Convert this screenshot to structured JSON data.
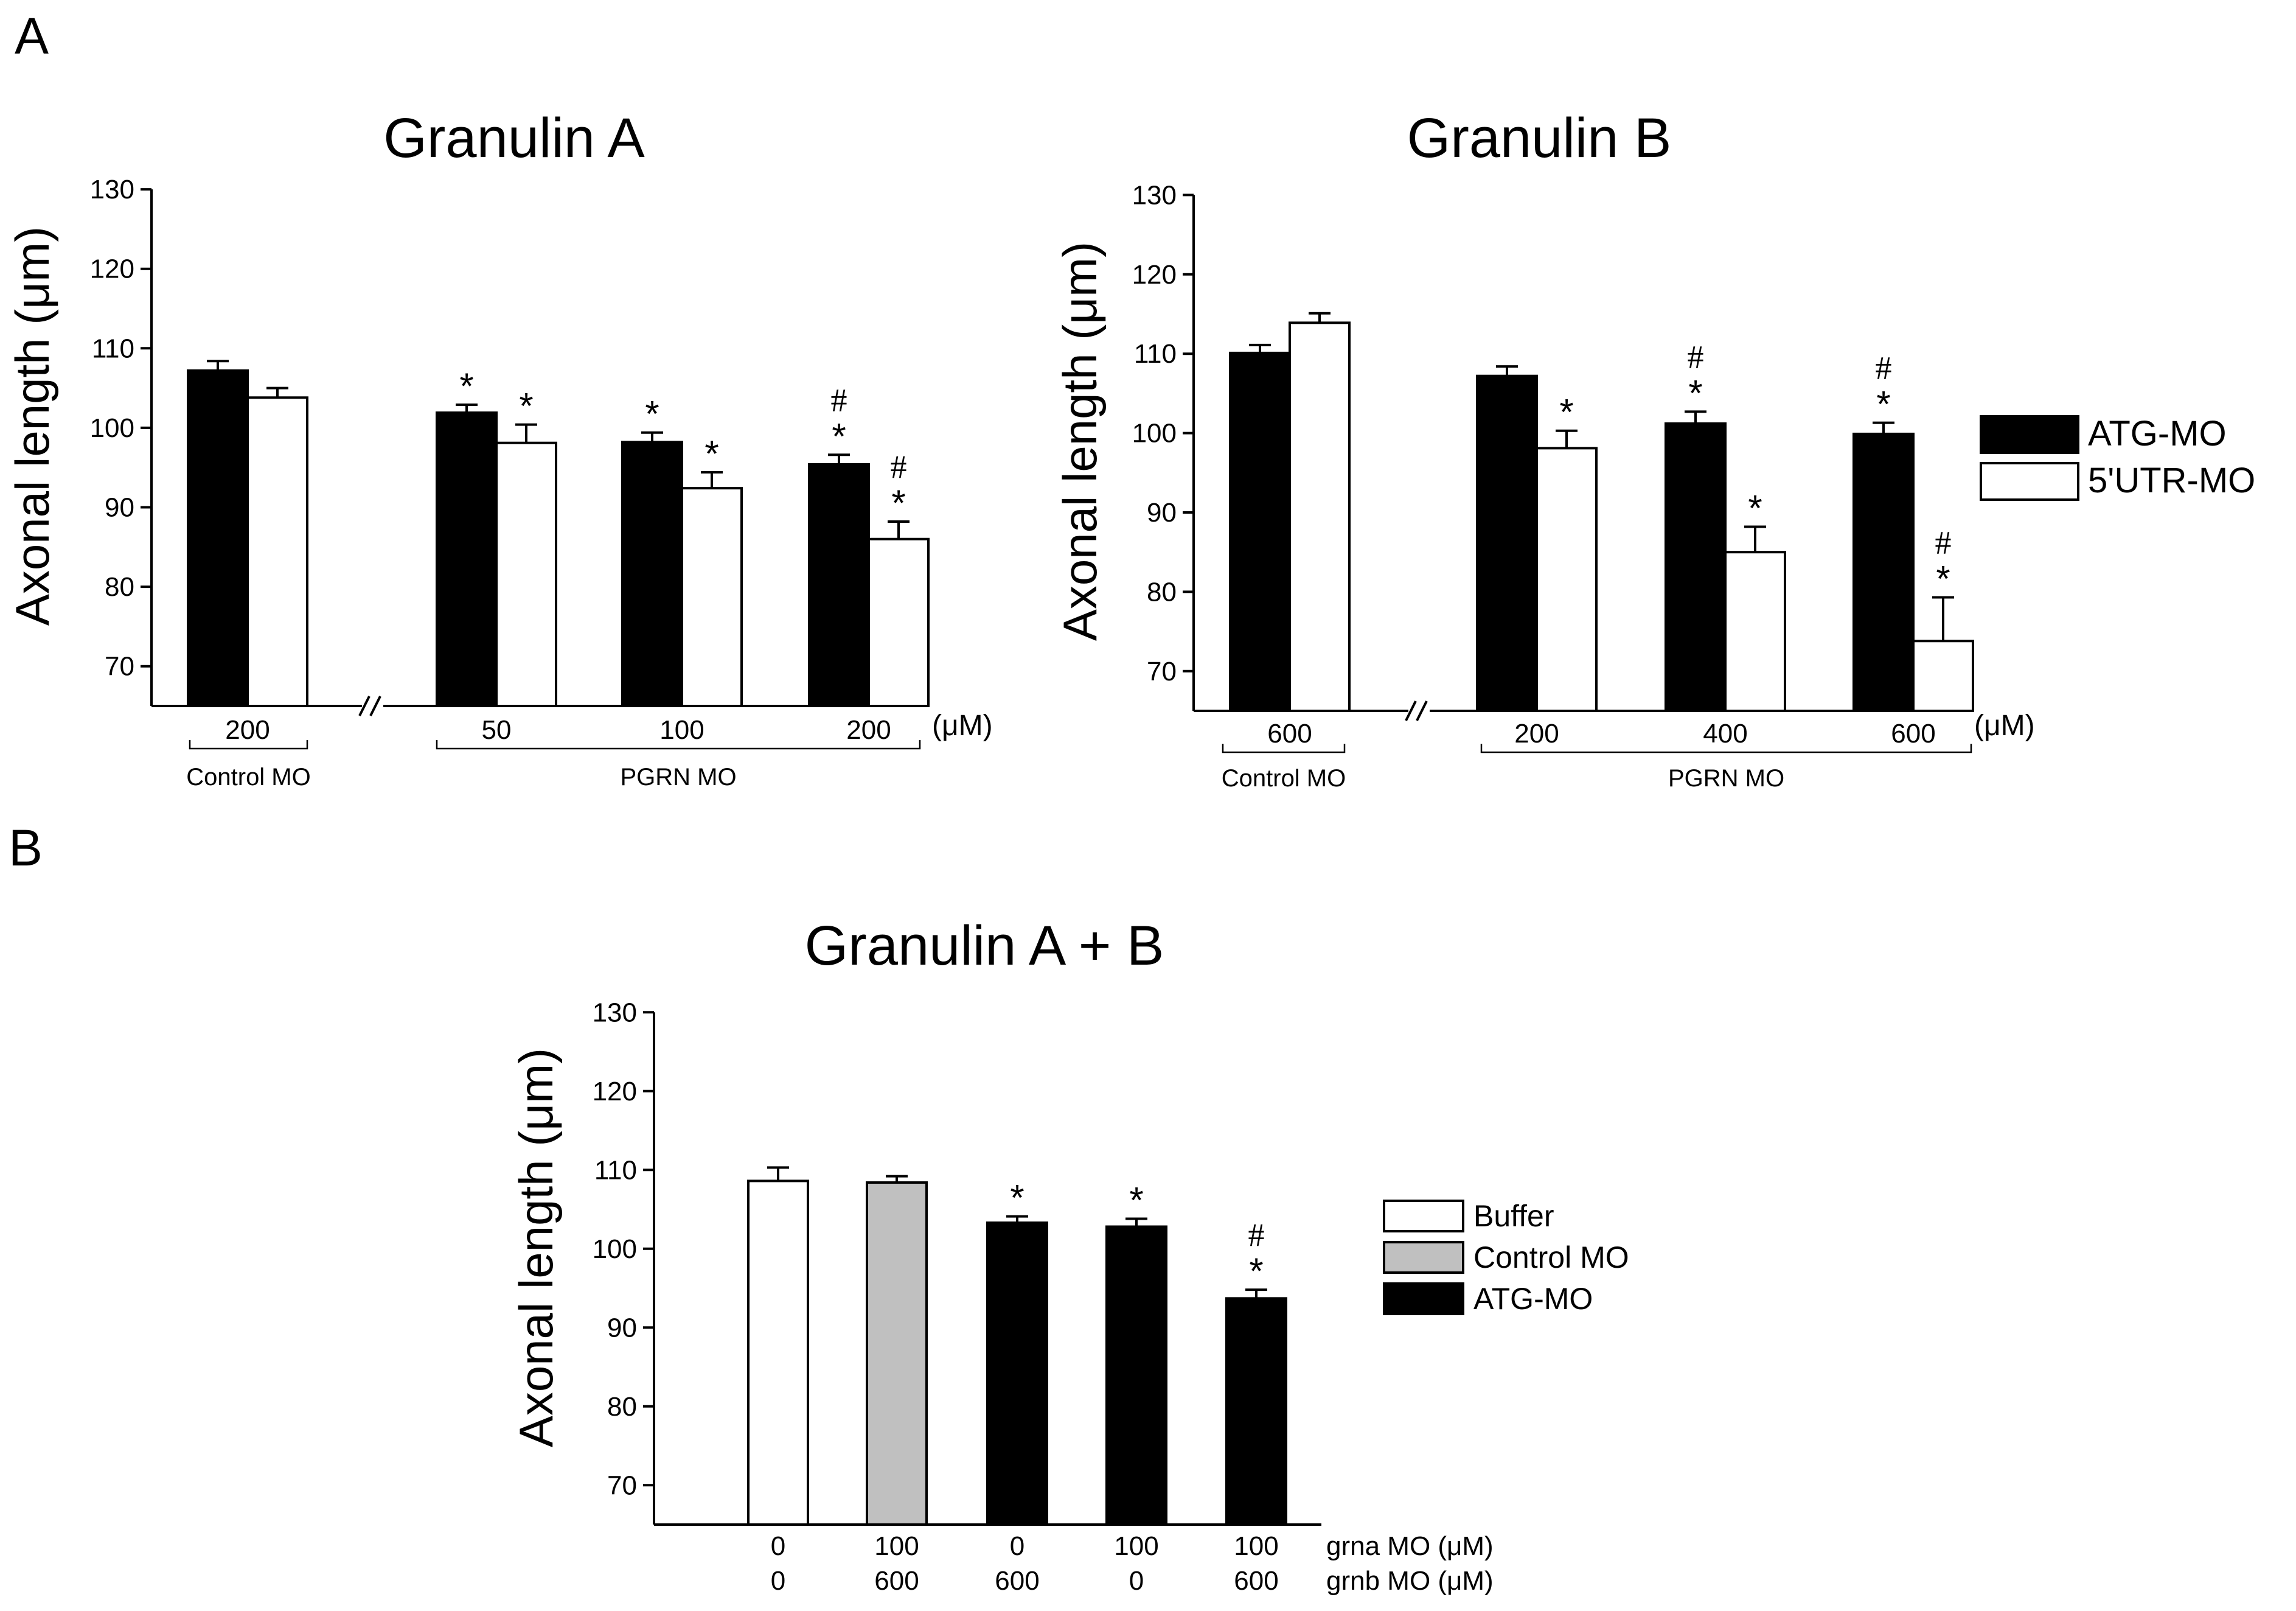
{
  "figure": {
    "panel_a_letter": "A",
    "panel_b_letter": "B",
    "legend_a": [
      {
        "label": "ATG-MO",
        "fill": "#000000"
      },
      {
        "label": "5'UTR-MO",
        "fill": "#ffffff"
      }
    ],
    "legend_b": [
      {
        "label": "Buffer",
        "fill": "#ffffff"
      },
      {
        "label": "Control MO",
        "fill": "#c0c0c0"
      },
      {
        "label": "ATG-MO",
        "fill": "#000000"
      }
    ]
  },
  "chart_data": [
    {
      "type": "bar",
      "title": "Granulin A",
      "ylabel": "Axonal length (μm)",
      "ylim": [
        65,
        130
      ],
      "yticks": [
        70,
        80,
        90,
        100,
        110,
        120,
        130
      ],
      "unit_label": "(μM)",
      "axis_break": true,
      "group_labels": [
        {
          "label": "Control MO",
          "covers": [
            "200"
          ]
        },
        {
          "label": "PGRN MO",
          "covers": [
            "50",
            "100",
            "200"
          ]
        }
      ],
      "categories": [
        "200",
        "50",
        "100",
        "200"
      ],
      "series": [
        {
          "name": "ATG-MO",
          "fill": "#000000",
          "values": [
            107.2,
            101.9,
            98.2,
            95.4
          ],
          "errors": [
            1.2,
            1.0,
            1.2,
            1.2
          ],
          "annotations": [
            [],
            [
              "*"
            ],
            [
              "*"
            ],
            [
              "*",
              "#"
            ]
          ]
        },
        {
          "name": "5'UTR-MO",
          "fill": "#ffffff",
          "values": [
            103.8,
            98.1,
            92.4,
            86.0
          ],
          "errors": [
            1.2,
            2.3,
            2.0,
            2.2
          ],
          "annotations": [
            [],
            [
              "*"
            ],
            [
              "*"
            ],
            [
              "*",
              "#"
            ]
          ]
        }
      ]
    },
    {
      "type": "bar",
      "title": "Granulin B",
      "ylabel": "Axonal length (μm)",
      "ylim": [
        65,
        130
      ],
      "yticks": [
        70,
        80,
        90,
        100,
        110,
        120,
        130
      ],
      "unit_label": "(μM)",
      "axis_break": true,
      "group_labels": [
        {
          "label": "Control MO",
          "covers": [
            "600"
          ]
        },
        {
          "label": "PGRN MO",
          "covers": [
            "200",
            "400",
            "600"
          ]
        }
      ],
      "categories": [
        "600",
        "200",
        "400",
        "600"
      ],
      "series": [
        {
          "name": "ATG-MO",
          "fill": "#000000",
          "values": [
            110.1,
            107.2,
            101.2,
            99.9
          ],
          "errors": [
            1.0,
            1.2,
            1.5,
            1.4
          ],
          "annotations": [
            [],
            [],
            [
              "*",
              "#"
            ],
            [
              "*",
              "#"
            ]
          ]
        },
        {
          "name": "5'UTR-MO",
          "fill": "#ffffff",
          "values": [
            113.9,
            98.1,
            85.0,
            73.8
          ],
          "errors": [
            1.2,
            2.2,
            3.2,
            5.5
          ],
          "annotations": [
            [],
            [
              "*"
            ],
            [
              "*"
            ],
            [
              "*",
              "#"
            ]
          ]
        }
      ]
    },
    {
      "type": "bar",
      "title": "Granulin A  + B",
      "ylabel": "Axonal length (μm)",
      "ylim": [
        65,
        130
      ],
      "yticks": [
        70,
        80,
        90,
        100,
        110,
        120,
        130
      ],
      "row_labels": [
        "grna MO (μM)",
        "grnb MO (μM)"
      ],
      "categories": [
        [
          "0",
          "0"
        ],
        [
          "100",
          "600"
        ],
        [
          "0",
          "600"
        ],
        [
          "100",
          "0"
        ],
        [
          "100",
          "600"
        ]
      ],
      "series": [
        {
          "name": "Axonal length",
          "fills": [
            "#ffffff",
            "#c0c0c0",
            "#000000",
            "#000000",
            "#000000"
          ],
          "values": [
            108.6,
            108.4,
            103.3,
            102.8,
            93.7
          ],
          "errors": [
            1.7,
            0.8,
            0.8,
            1.0,
            1.1
          ],
          "annotations": [
            [],
            [],
            [
              "*"
            ],
            [
              "*"
            ],
            [
              "*",
              "#"
            ]
          ]
        }
      ]
    }
  ]
}
